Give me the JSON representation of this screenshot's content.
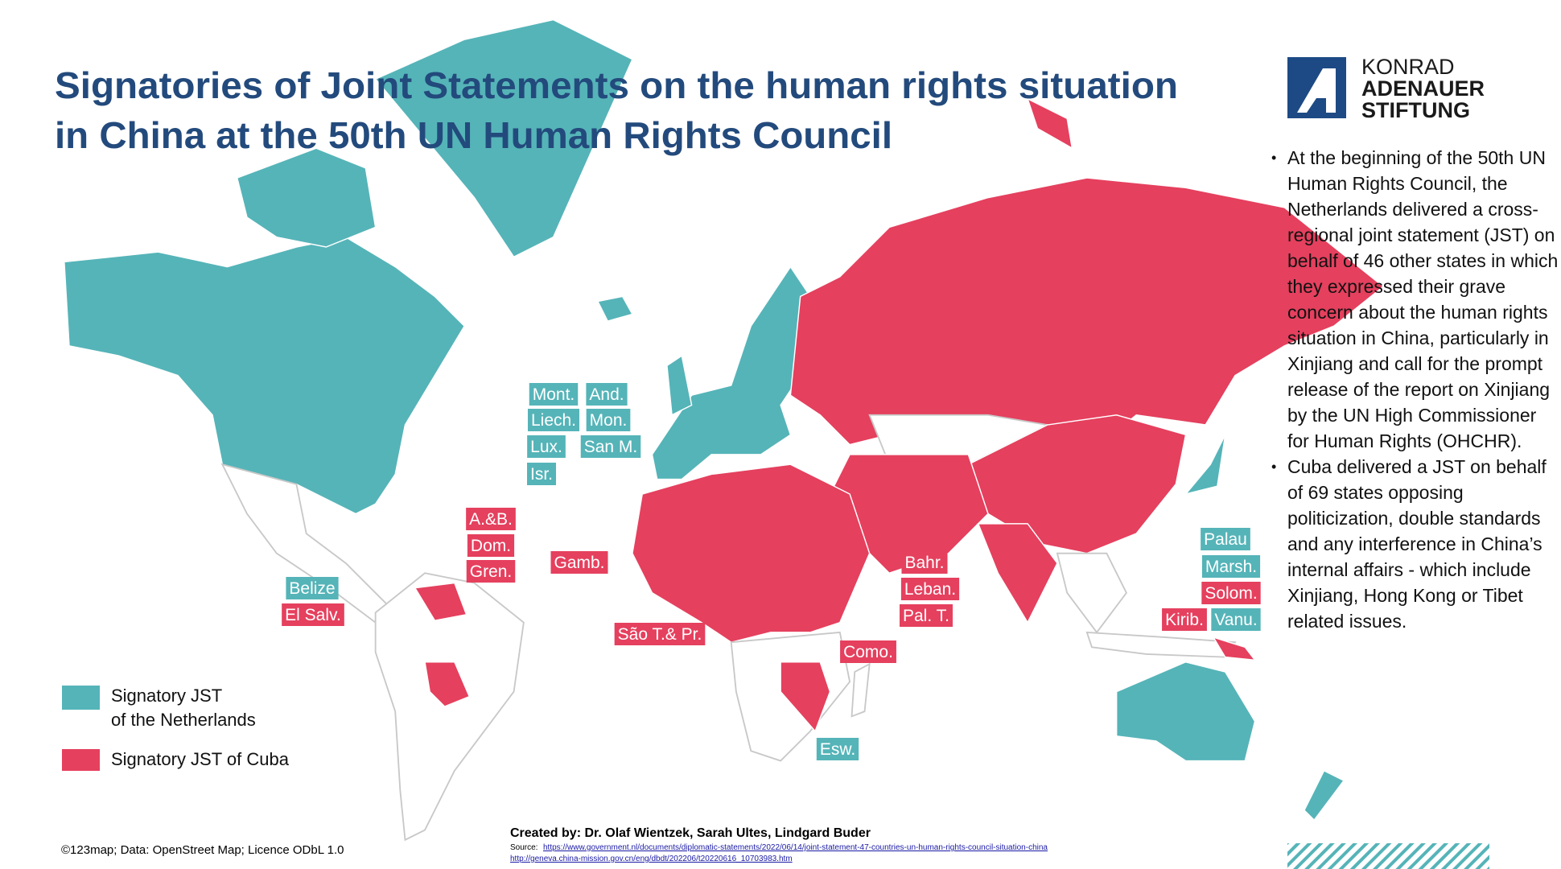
{
  "title": [
    "Signatories of Joint Statements on the human rights situation",
    "in China at the 50th UN Human Rights Council"
  ],
  "logo": [
    "KONRAD",
    "ADENAUER",
    "STIFTUNG"
  ],
  "bullets": [
    "At the beginning of the 50th UN Human Rights Council, the Netherlands delivered a cross-regional joint statement (JST) on behalf of 46 other states in which they expressed their grave concern about the human rights situation in China, particularly in Xinjiang and call for the prompt release of the report on Xinjiang by the UN High Commissioner for Human Rights (OHCHR).",
    "Cuba delivered a JST on behalf of 69 states opposing politicization, double standards and any interference in China’s internal affairs - which include Xinjiang, Hong Kong or Tibet related issues."
  ],
  "legend": [
    {
      "label": [
        "Signatory JST",
        "of the Netherlands"
      ],
      "color": "#55b4b8"
    },
    {
      "label": [
        "Signatory JST of Cuba"
      ],
      "color": "#e5405e"
    }
  ],
  "country_labels": [
    {
      "text": "Mont.",
      "color": "#55b4b8"
    },
    {
      "text": "And.",
      "color": "#55b4b8"
    },
    {
      "text": "Liech.",
      "color": "#55b4b8"
    },
    {
      "text": "Mon.",
      "color": "#55b4b8"
    },
    {
      "text": "Lux.",
      "color": "#55b4b8"
    },
    {
      "text": "San M.",
      "color": "#55b4b8"
    },
    {
      "text": "Isr.",
      "color": "#55b4b8"
    },
    {
      "text": "A.&B.",
      "color": "#e5405e"
    },
    {
      "text": "Dom.",
      "color": "#e5405e"
    },
    {
      "text": "Gren.",
      "color": "#e5405e"
    },
    {
      "text": "Gamb.",
      "color": "#e5405e"
    },
    {
      "text": "Belize",
      "color": "#55b4b8"
    },
    {
      "text": "El Salv.",
      "color": "#e5405e"
    },
    {
      "text": "São T.& Pr.",
      "color": "#e5405e"
    },
    {
      "text": "Bahr.",
      "color": "#e5405e"
    },
    {
      "text": "Leban.",
      "color": "#e5405e"
    },
    {
      "text": "Pal. T.",
      "color": "#e5405e"
    },
    {
      "text": "Como.",
      "color": "#e5405e"
    },
    {
      "text": "Esw.",
      "color": "#55b4b8"
    },
    {
      "text": "Palau",
      "color": "#55b4b8"
    },
    {
      "text": "Marsh.",
      "color": "#55b4b8"
    },
    {
      "text": "Solom.",
      "color": "#e5405e"
    },
    {
      "text": "Kirib.",
      "color": "#e5405e"
    },
    {
      "text": "Vanu.",
      "color": "#55b4b8"
    }
  ],
  "credits": "Created by: Dr. Olaf Wientzek, Sarah Ultes, Lindgard Buder",
  "source_label": "Source:",
  "source_links": [
    "https://www.government.nl/documents/diplomatic-statements/2022/06/14/joint-statement-47-countries-un-human-rights-council-situation-china",
    "http://geneva.china-mission.gov.cn/eng/dbdt/202206/t20220616_10703983.htm"
  ],
  "copyright": "©123map; Data: OpenStreet Map; Licence ODbL 1.0"
}
